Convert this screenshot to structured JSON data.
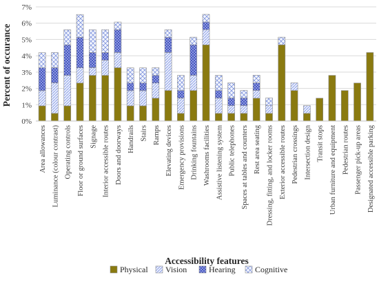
{
  "chart_data": {
    "type": "bar",
    "stacked": true,
    "xlabel": "Accessibility features",
    "ylabel": "Percent of occurance",
    "ylim": [
      0,
      7
    ],
    "yticks": [
      "0%",
      "1%",
      "2%",
      "3%",
      "4%",
      "5%",
      "6%",
      "7%"
    ],
    "grid": true,
    "legend": "bottom",
    "categories": [
      "Area allowances",
      "Luminance (colour contrast)",
      "Operating controls",
      "Floor or ground surfaces",
      "Signage",
      "Interior accessible routes",
      "Doors and doorways",
      "Handrails",
      "Stairs",
      "Ramps",
      "Elevating devices",
      "Emergency provisions",
      "Drinking fountains",
      "Washrooms facilities",
      "Assistive listening system",
      "Public telephones",
      "Spaces at tables and counters",
      "Rest area seating",
      "Dressing, fitting, and locker rooms",
      "Exterior accessible routes",
      "Pedestrian crossings",
      "Intersection design",
      "Transit stops",
      "Urban furniture and equipment",
      "Pedestrian routes",
      "Passenger pick-up areas",
      "Designated accessible parking"
    ],
    "series": [
      {
        "name": "Physical",
        "color": "#8a7a10",
        "values": [
          0.93,
          0.47,
          0.93,
          2.33,
          2.8,
          2.8,
          3.27,
          0.93,
          0.93,
          1.4,
          1.87,
          0.47,
          1.87,
          4.67,
          0.47,
          0.47,
          0.47,
          1.4,
          0.47,
          4.67,
          1.87,
          0.47,
          1.4,
          2.8,
          1.87,
          2.33,
          4.2
        ]
      },
      {
        "name": "Vision",
        "color": "#aebcf0",
        "values": [
          0.93,
          1.87,
          1.87,
          0.93,
          0.47,
          0.93,
          0.93,
          0.93,
          0.93,
          0.93,
          2.33,
          0.93,
          0.93,
          0.93,
          0.93,
          0.47,
          0.47,
          0.47,
          0.47,
          0.0,
          0.47,
          0.47,
          0.0,
          0.0,
          0.0,
          0.0,
          0.0
        ]
      },
      {
        "name": "Hearing",
        "color": "#3f4fbf",
        "values": [
          1.4,
          0.93,
          1.87,
          1.87,
          0.93,
          0.47,
          1.4,
          0.47,
          0.47,
          0.47,
          0.93,
          0.47,
          1.87,
          0.47,
          0.47,
          0.47,
          0.47,
          0.47,
          0.0,
          0.0,
          0.0,
          0.0,
          0.0,
          0.0,
          0.0,
          0.0,
          0.0
        ]
      },
      {
        "name": "Cognitive",
        "color": "#c5d3f5",
        "values": [
          0.93,
          0.93,
          0.93,
          1.4,
          1.4,
          1.4,
          0.47,
          0.93,
          0.93,
          0.47,
          0.47,
          0.93,
          0.47,
          0.47,
          0.93,
          0.93,
          0.47,
          0.47,
          0.47,
          0.47,
          0.0,
          0.0,
          0.0,
          0.0,
          0.0,
          0.0,
          0.0
        ]
      }
    ]
  }
}
